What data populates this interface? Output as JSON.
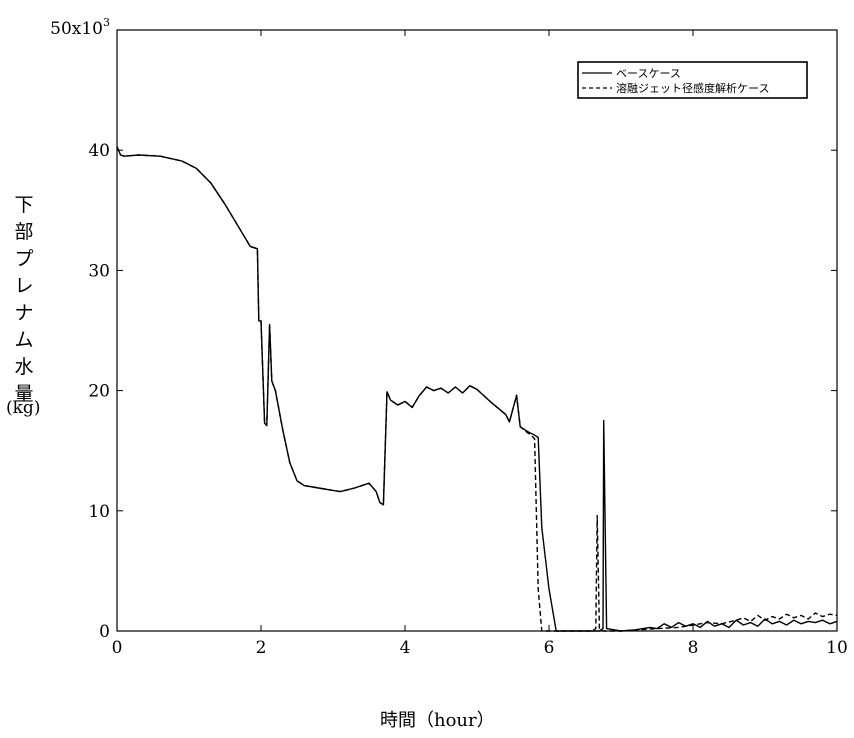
{
  "chart_data": {
    "type": "line",
    "xlabel": "時間（hour）",
    "ylabel": "下部プレナム水量",
    "yunit": "(kg)",
    "xlim": [
      0,
      10
    ],
    "ylim": [
      0,
      50000
    ],
    "x_ticks": [
      "0",
      "2",
      "4",
      "6",
      "8",
      "10"
    ],
    "y_ticks": [
      "0",
      "10",
      "20",
      "30",
      "40"
    ],
    "y_top_label": {
      "base": "50x10",
      "exp": "3"
    },
    "legend_position": "top-right",
    "grid": false,
    "series": [
      {
        "name": "ベースケース",
        "style": "solid",
        "x": [
          0,
          0.05,
          0.1,
          0.3,
          0.6,
          0.9,
          1.1,
          1.3,
          1.5,
          1.7,
          1.85,
          1.95,
          1.97,
          2.0,
          2.05,
          2.08,
          2.12,
          2.15,
          2.2,
          2.3,
          2.4,
          2.5,
          2.6,
          2.8,
          3.0,
          3.1,
          3.3,
          3.5,
          3.6,
          3.65,
          3.7,
          3.75,
          3.8,
          3.9,
          4.0,
          4.1,
          4.2,
          4.3,
          4.4,
          4.5,
          4.6,
          4.7,
          4.8,
          4.9,
          5.0,
          5.2,
          5.4,
          5.45,
          5.5,
          5.55,
          5.6,
          5.7,
          5.8,
          5.85,
          5.9,
          6.0,
          6.1,
          6.2,
          6.5,
          6.7,
          6.75,
          6.76,
          6.8,
          7.0,
          7.2,
          7.4,
          7.5,
          7.6,
          7.7,
          7.8,
          7.9,
          8.0,
          8.1,
          8.2,
          8.3,
          8.4,
          8.5,
          8.6,
          8.7,
          8.8,
          8.9,
          9.0,
          9.1,
          9.2,
          9.3,
          9.4,
          9.5,
          9.6,
          9.7,
          9.8,
          9.9,
          10.0
        ],
        "values": [
          40300,
          39600,
          39500,
          39600,
          39500,
          39100,
          38500,
          37300,
          35500,
          33500,
          32000,
          31800,
          25800,
          25800,
          17300,
          17100,
          25500,
          20800,
          20000,
          16800,
          14000,
          12500,
          12100,
          11900,
          11700,
          11600,
          11900,
          12300,
          11600,
          10700,
          10500,
          19900,
          19200,
          18800,
          19100,
          18600,
          19600,
          20300,
          20000,
          20200,
          19800,
          20300,
          19800,
          20400,
          20100,
          19000,
          18000,
          17400,
          18500,
          19600,
          17000,
          16600,
          16300,
          16100,
          8600,
          3500,
          0,
          0,
          0,
          0,
          200,
          17500,
          200,
          0,
          100,
          300,
          200,
          600,
          300,
          700,
          400,
          600,
          300,
          800,
          400,
          600,
          300,
          900,
          500,
          700,
          400,
          1000,
          600,
          800,
          500,
          900,
          600,
          800,
          700,
          900,
          600,
          800
        ]
      },
      {
        "name": "溶融ジェット径感度解析ケース",
        "style": "dashed",
        "x": [
          0,
          0.05,
          0.1,
          0.3,
          0.6,
          0.9,
          1.1,
          1.3,
          1.5,
          1.7,
          1.85,
          1.95,
          1.97,
          2.0,
          2.05,
          2.08,
          2.12,
          2.15,
          2.2,
          2.3,
          2.4,
          2.5,
          2.6,
          2.8,
          3.0,
          3.1,
          3.3,
          3.5,
          3.6,
          3.65,
          3.7,
          3.75,
          3.8,
          3.9,
          4.0,
          4.1,
          4.2,
          4.3,
          4.4,
          4.5,
          4.6,
          4.7,
          4.8,
          4.9,
          5.0,
          5.2,
          5.4,
          5.45,
          5.5,
          5.55,
          5.6,
          5.7,
          5.75,
          5.8,
          5.85,
          5.9,
          6.2,
          6.6,
          6.65,
          6.67,
          6.7,
          6.75,
          7.0,
          7.5,
          7.8,
          8.0,
          8.2,
          8.4,
          8.6,
          8.7,
          8.8,
          8.9,
          9.0,
          9.1,
          9.2,
          9.3,
          9.4,
          9.5,
          9.6,
          9.7,
          9.8,
          9.9,
          10.0
        ],
        "values": [
          40300,
          39600,
          39500,
          39600,
          39500,
          39100,
          38500,
          37300,
          35500,
          33500,
          32000,
          31800,
          25800,
          25800,
          17300,
          17100,
          25500,
          20800,
          20000,
          16800,
          14000,
          12500,
          12100,
          11900,
          11700,
          11600,
          11900,
          12300,
          11600,
          10700,
          10500,
          19900,
          19200,
          18800,
          19100,
          18600,
          19600,
          20300,
          20000,
          20200,
          19800,
          20300,
          19800,
          20400,
          20100,
          19000,
          18000,
          17400,
          18500,
          19600,
          17000,
          16500,
          16300,
          16000,
          3500,
          0,
          0,
          0,
          200,
          9600,
          200,
          0,
          0,
          200,
          300,
          500,
          700,
          600,
          900,
          1100,
          800,
          1300,
          900,
          1200,
          1000,
          1400,
          1100,
          1300,
          1000,
          1500,
          1200,
          1400,
          1300
        ]
      }
    ]
  }
}
